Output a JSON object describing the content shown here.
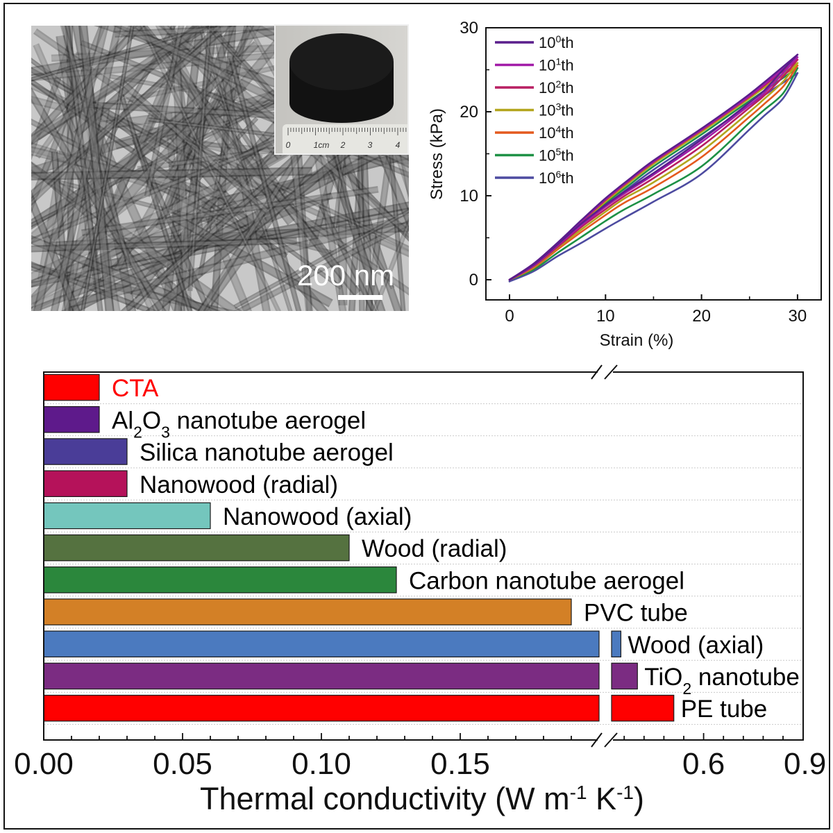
{
  "tem_image": {
    "scale_bar_label": "200 nm",
    "inset_ruler_labels": [
      "0",
      "1cm",
      "2",
      "3",
      "4"
    ]
  },
  "chart_data": [
    {
      "type": "line",
      "title": "",
      "xlabel": "Strain (%)",
      "ylabel": "Stress (kPa)",
      "xlim": [
        -2.5,
        32.5
      ],
      "ylim": [
        -2.4,
        30
      ],
      "xticks": [
        0,
        10,
        20,
        30
      ],
      "xtick_labels": [
        "0",
        "10",
        "20",
        "30"
      ],
      "x_minor_ticks": [
        5,
        15,
        25
      ],
      "yticks": [
        0,
        10,
        20,
        30
      ],
      "ytick_labels": [
        "0",
        "10",
        "20",
        "30"
      ],
      "y_minor_ticks": [
        5,
        15,
        25
      ],
      "grid": false,
      "legend_position": "top-left",
      "series": [
        {
          "name": "10^0th",
          "label_parts": [
            {
              "t": "10"
            },
            {
              "t": "0",
              "sup": true
            },
            {
              "t": "th"
            }
          ],
          "color": "#5a1e8c",
          "loading": [
            [
              0,
              0
            ],
            [
              2.5,
              1.9
            ],
            [
              5,
              4.4
            ],
            [
              7.5,
              7.1
            ],
            [
              10,
              9.7
            ],
            [
              12.5,
              12.0
            ],
            [
              15,
              14.2
            ],
            [
              20,
              18.0
            ],
            [
              25,
              22.1
            ],
            [
              30,
              26.8
            ]
          ],
          "unloading": [
            [
              30,
              26.8
            ],
            [
              28.5,
              25.0
            ],
            [
              26.5,
              22.5
            ],
            [
              25,
              21.1
            ],
            [
              20,
              16.7
            ],
            [
              15,
              12.7
            ],
            [
              12,
              10.5
            ],
            [
              10,
              8.9
            ],
            [
              7.5,
              6.7
            ],
            [
              5,
              4.2
            ],
            [
              2.5,
              1.8
            ],
            [
              0,
              0
            ]
          ]
        },
        {
          "name": "10^1th",
          "label_parts": [
            {
              "t": "10"
            },
            {
              "t": "1",
              "sup": true
            },
            {
              "t": "th"
            }
          ],
          "color": "#a21ca8",
          "loading": [
            [
              0,
              0
            ],
            [
              2.5,
              1.9
            ],
            [
              5,
              4.3
            ],
            [
              7.5,
              7.0
            ],
            [
              10,
              9.6
            ],
            [
              12.5,
              11.9
            ],
            [
              15,
              14.1
            ],
            [
              20,
              17.9
            ],
            [
              25,
              21.9
            ],
            [
              30,
              26.5
            ]
          ],
          "unloading": [
            [
              30,
              26.5
            ],
            [
              28.5,
              24.6
            ],
            [
              26.5,
              22.2
            ],
            [
              25,
              20.8
            ],
            [
              20,
              16.4
            ],
            [
              15,
              12.5
            ],
            [
              12,
              10.3
            ],
            [
              10,
              8.7
            ],
            [
              7.5,
              6.5
            ],
            [
              5,
              4.1
            ],
            [
              2.5,
              1.7
            ],
            [
              0,
              0
            ]
          ]
        },
        {
          "name": "10^2th",
          "label_parts": [
            {
              "t": "10"
            },
            {
              "t": "2",
              "sup": true
            },
            {
              "t": "th"
            }
          ],
          "color": "#b81f62",
          "loading": [
            [
              0,
              0
            ],
            [
              2.5,
              1.8
            ],
            [
              5,
              4.2
            ],
            [
              7.5,
              6.9
            ],
            [
              10,
              9.5
            ],
            [
              12.5,
              11.8
            ],
            [
              15,
              14.0
            ],
            [
              20,
              17.8
            ],
            [
              25,
              21.8
            ],
            [
              30,
              26.2
            ]
          ],
          "unloading": [
            [
              30,
              26.2
            ],
            [
              28.5,
              24.2
            ],
            [
              26.5,
              21.9
            ],
            [
              25,
              20.5
            ],
            [
              20,
              15.9
            ],
            [
              15,
              12.1
            ],
            [
              12,
              10.0
            ],
            [
              10,
              8.4
            ],
            [
              7.5,
              6.3
            ],
            [
              5,
              3.9
            ],
            [
              2.5,
              1.6
            ],
            [
              0,
              0
            ]
          ]
        },
        {
          "name": "10^3th",
          "label_parts": [
            {
              "t": "10"
            },
            {
              "t": "3",
              "sup": true
            },
            {
              "t": "th"
            }
          ],
          "color": "#b3a51d",
          "loading": [
            [
              0,
              0
            ],
            [
              2.5,
              1.8
            ],
            [
              5,
              4.1
            ],
            [
              7.5,
              6.8
            ],
            [
              10,
              9.3
            ],
            [
              12.5,
              11.6
            ],
            [
              15,
              13.8
            ],
            [
              20,
              17.6
            ],
            [
              25,
              21.6
            ],
            [
              30,
              25.8
            ]
          ],
          "unloading": [
            [
              30,
              25.8
            ],
            [
              28.5,
              23.6
            ],
            [
              26.5,
              21.5
            ],
            [
              25,
              20.0
            ],
            [
              20,
              15.3
            ],
            [
              15,
              11.6
            ],
            [
              12,
              9.7
            ],
            [
              10,
              8.1
            ],
            [
              7.5,
              6.0
            ],
            [
              5,
              3.8
            ],
            [
              2.5,
              1.5
            ],
            [
              0,
              0
            ]
          ]
        },
        {
          "name": "10^4th",
          "label_parts": [
            {
              "t": "10"
            },
            {
              "t": "4",
              "sup": true
            },
            {
              "t": "th"
            }
          ],
          "color": "#e45a1f",
          "loading": [
            [
              0,
              0
            ],
            [
              2.5,
              1.8
            ],
            [
              5,
              4.1
            ],
            [
              7.5,
              6.8
            ],
            [
              10,
              9.3
            ],
            [
              12.5,
              11.6
            ],
            [
              15,
              13.8
            ],
            [
              20,
              17.7
            ],
            [
              25,
              21.7
            ],
            [
              30,
              25.5
            ]
          ],
          "unloading": [
            [
              30,
              25.5
            ],
            [
              28.5,
              23.0
            ],
            [
              26.5,
              20.9
            ],
            [
              25,
              19.4
            ],
            [
              20,
              14.6
            ],
            [
              15,
              11.0
            ],
            [
              12,
              9.2
            ],
            [
              10,
              7.7
            ],
            [
              7.5,
              5.7
            ],
            [
              5,
              3.6
            ],
            [
              2.5,
              1.4
            ],
            [
              0,
              0
            ]
          ]
        },
        {
          "name": "10^5th",
          "label_parts": [
            {
              "t": "10"
            },
            {
              "t": "5",
              "sup": true
            },
            {
              "t": "th"
            }
          ],
          "color": "#1e9146",
          "loading": [
            [
              0,
              0
            ],
            [
              2.5,
              1.7
            ],
            [
              5,
              4.0
            ],
            [
              7.5,
              6.7
            ],
            [
              10,
              9.1
            ],
            [
              12.5,
              11.3
            ],
            [
              15,
              13.5
            ],
            [
              20,
              17.3
            ],
            [
              25,
              21.3
            ],
            [
              30,
              25.2
            ]
          ],
          "unloading": [
            [
              30,
              25.2
            ],
            [
              28.5,
              22.2
            ],
            [
              26.5,
              20.2
            ],
            [
              25,
              18.7
            ],
            [
              20,
              13.5
            ],
            [
              15,
              10.2
            ],
            [
              12,
              8.4
            ],
            [
              10,
              7.0
            ],
            [
              7.5,
              5.1
            ],
            [
              5,
              3.2
            ],
            [
              2.5,
              1.2
            ],
            [
              0,
              0
            ]
          ]
        },
        {
          "name": "10^6th",
          "label_parts": [
            {
              "t": "10"
            },
            {
              "t": "6",
              "sup": true
            },
            {
              "t": "th"
            }
          ],
          "color": "#4d4ba0",
          "loading": [
            [
              0,
              -0.2
            ],
            [
              2.5,
              1.6
            ],
            [
              5,
              3.8
            ],
            [
              7.5,
              6.4
            ],
            [
              10,
              8.8
            ],
            [
              12.5,
              11.0
            ],
            [
              15,
              13.1
            ],
            [
              20,
              16.9
            ],
            [
              25,
              20.8
            ],
            [
              30,
              24.6
            ]
          ],
          "unloading": [
            [
              30,
              24.6
            ],
            [
              28.5,
              21.6
            ],
            [
              26.5,
              19.5
            ],
            [
              25,
              17.9
            ],
            [
              20,
              12.6
            ],
            [
              15,
              9.3
            ],
            [
              12,
              7.4
            ],
            [
              10,
              6.1
            ],
            [
              7.5,
              4.4
            ],
            [
              5,
              2.8
            ],
            [
              2.5,
              1.0
            ],
            [
              0,
              -0.2
            ]
          ]
        }
      ]
    },
    {
      "type": "bar",
      "orientation": "horizontal",
      "title": "",
      "xlabel": "Thermal conductivity (W m-1 K-1)",
      "xlabel_parts": [
        {
          "t": "Thermal conductivity (W m"
        },
        {
          "t": "-1",
          "sup": true
        },
        {
          "t": " K"
        },
        {
          "t": "-1",
          "sup": true
        },
        {
          "t": ")"
        }
      ],
      "ylabel": "",
      "xlim": [
        0,
        0.9
      ],
      "axis_break": [
        0.2,
        0.3
      ],
      "xticks": [
        0,
        0.05,
        0.1,
        0.15,
        0.6,
        0.9
      ],
      "xtick_labels": [
        "0.00",
        "0.05",
        "0.10",
        "0.15",
        "0.6",
        "0.9"
      ],
      "x_minor_step_below_break": 0.01,
      "x_minor_step_above_break": 0.06,
      "grid": "horizontal dotted separators",
      "legend": "none",
      "categories": [
        "CTA",
        "Al2O3 nanotube aerogel",
        "Silica nanotube aerogel",
        "Nanowood (radial)",
        "Nanowood (axial)",
        "Wood (radial)",
        "Carbon nanotube aerogel",
        "PVC tube",
        "Wood (axial)",
        "TiO2 nanotube",
        "PE tube"
      ],
      "values": [
        0.02,
        0.02,
        0.03,
        0.03,
        0.06,
        0.11,
        0.127,
        0.19,
        0.35,
        0.4,
        0.51
      ],
      "bars": [
        {
          "label_parts": [
            {
              "t": "CTA"
            }
          ],
          "color": "#ff0000",
          "label_color": "#ff0000"
        },
        {
          "label_parts": [
            {
              "t": "Al"
            },
            {
              "t": "2",
              "sub": true
            },
            {
              "t": "O"
            },
            {
              "t": "3",
              "sub": true
            },
            {
              "t": " nanotube aerogel"
            }
          ],
          "color": "#5e1a8b",
          "label_color": "#000000"
        },
        {
          "label_parts": [
            {
              "t": "Silica nanotube aerogel"
            }
          ],
          "color": "#4a3d98",
          "label_color": "#000000"
        },
        {
          "label_parts": [
            {
              "t": "Nanowood (radial)"
            }
          ],
          "color": "#b5125a",
          "label_color": "#000000"
        },
        {
          "label_parts": [
            {
              "t": "Nanowood (axial)"
            }
          ],
          "color": "#74c6bd",
          "label_color": "#000000"
        },
        {
          "label_parts": [
            {
              "t": "Wood (radial)"
            }
          ],
          "color": "#557240",
          "label_color": "#000000"
        },
        {
          "label_parts": [
            {
              "t": "Carbon nanotube aerogel"
            }
          ],
          "color": "#2b873c",
          "label_color": "#000000"
        },
        {
          "label_parts": [
            {
              "t": "PVC tube"
            }
          ],
          "color": "#d38026",
          "label_color": "#000000"
        },
        {
          "label_parts": [
            {
              "t": "Wood (axial)"
            }
          ],
          "color": "#4b7abf",
          "label_color": "#000000"
        },
        {
          "label_parts": [
            {
              "t": "TiO"
            },
            {
              "t": "2",
              "sub": true
            },
            {
              "t": " nanotube"
            }
          ],
          "color": "#7b2c82",
          "label_color": "#000000"
        },
        {
          "label_parts": [
            {
              "t": "PE tube"
            }
          ],
          "color": "#ff0000",
          "label_color": "#000000"
        }
      ]
    }
  ]
}
